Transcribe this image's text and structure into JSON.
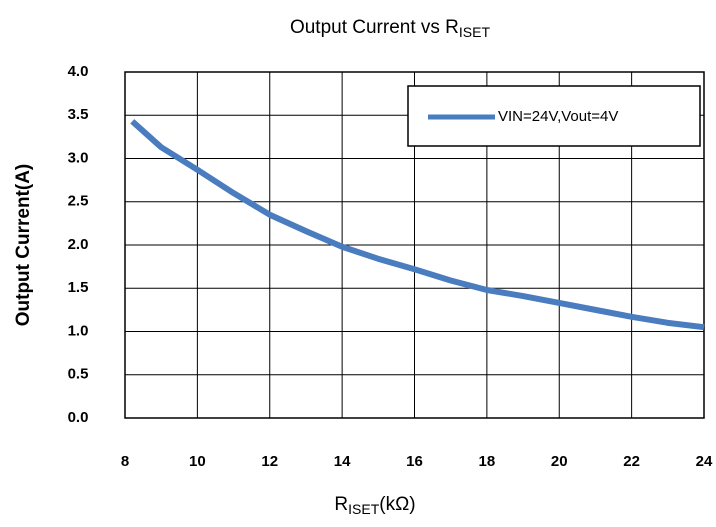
{
  "chart_data": {
    "type": "line",
    "title": [
      "Output Current vs R",
      "ISET"
    ],
    "xlabel": [
      "R",
      "ISET",
      "(kΩ)"
    ],
    "ylabel": "Output Current(A)",
    "x": [
      8.2,
      9,
      10,
      11,
      12,
      13,
      14,
      15,
      16,
      17,
      18,
      19,
      20,
      21,
      22,
      23,
      24
    ],
    "series": [
      {
        "name": "VIN=24V,Vout=4V",
        "color": "#4a7cc0",
        "values": [
          3.43,
          3.13,
          2.87,
          2.6,
          2.35,
          2.16,
          1.98,
          1.84,
          1.72,
          1.59,
          1.48,
          1.41,
          1.33,
          1.25,
          1.17,
          1.1,
          1.05
        ]
      }
    ],
    "xlim": [
      8,
      24
    ],
    "xticks": [
      8,
      10,
      12,
      14,
      16,
      18,
      20,
      22,
      24
    ],
    "ylim": [
      0,
      4
    ],
    "yticks": [
      {
        "value": 0,
        "label": "0.0"
      },
      {
        "value": 0.5,
        "label": "0.5"
      },
      {
        "value": 1,
        "label": "1.0"
      },
      {
        "value": 1.5,
        "label": "1.5"
      },
      {
        "value": 2,
        "label": "2.0"
      },
      {
        "value": 2.5,
        "label": "2.5"
      },
      {
        "value": 3,
        "label": "3.0"
      },
      {
        "value": 3.5,
        "label": "3.5"
      },
      {
        "value": 4,
        "label": "4.0"
      }
    ],
    "grid": true,
    "legend": "upper right"
  }
}
